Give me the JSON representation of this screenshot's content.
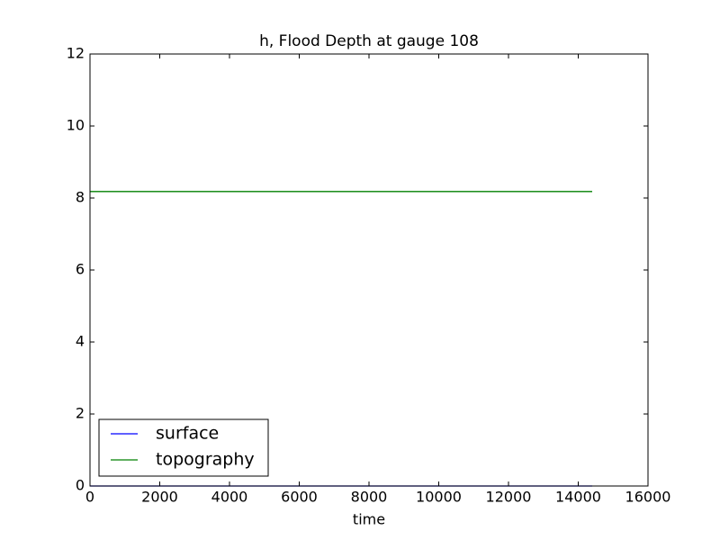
{
  "chart_data": {
    "type": "line",
    "title": "h, Flood Depth at gauge 108",
    "x_label": "time",
    "x": [
      0,
      14400
    ],
    "series": [
      {
        "name": "surface",
        "color": "#0000ff",
        "values": [
          0,
          0
        ]
      },
      {
        "name": "topography",
        "color": "#008000",
        "values": [
          8.18,
          8.18
        ]
      }
    ],
    "xlim": [
      0,
      16000
    ],
    "xticks": [
      0,
      2000,
      4000,
      6000,
      8000,
      10000,
      12000,
      14000,
      16000
    ],
    "ylim": [
      0,
      12
    ],
    "yticks": [
      0,
      2,
      4,
      6,
      8,
      10,
      12
    ],
    "grid": false,
    "legend": "lower left"
  }
}
